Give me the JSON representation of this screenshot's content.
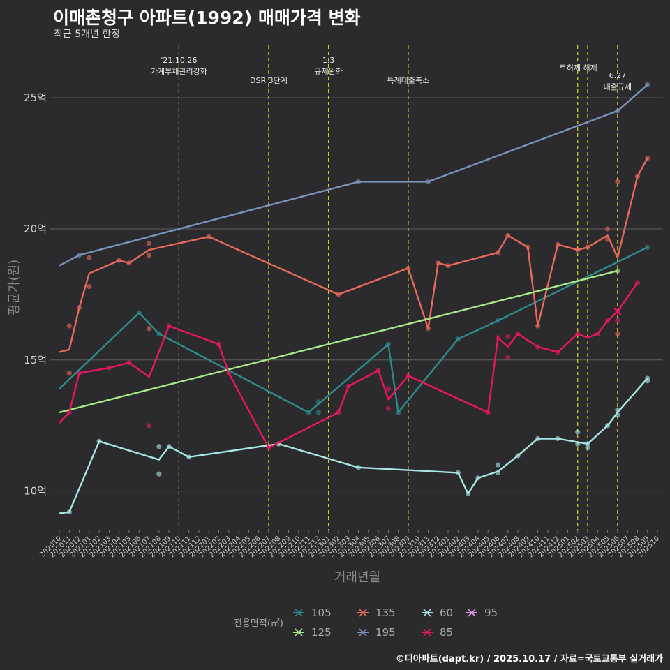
{
  "header": {
    "title": "이매촌청구 아파트(1992) 매매가격 변화",
    "subtitle": "최근 5개년 한정"
  },
  "footer": {
    "caption": "©디아파트(dapt.kr) / 2025.10.17 / 자료=국토교통부 실거래가"
  },
  "chart_data": {
    "type": "line",
    "title": "이매촌청구 아파트(1992) 매매가격 변화",
    "xlabel": "거래년월",
    "ylabel": "평균가(원)",
    "x_range": [
      "2020-10",
      "2025-10"
    ],
    "ylim": [
      8.5,
      27.0
    ],
    "yticks": [
      {
        "value": 10,
        "label": "10억"
      },
      {
        "value": 15,
        "label": "15억"
      },
      {
        "value": 20,
        "label": "20억"
      },
      {
        "value": 25,
        "label": "25억"
      }
    ],
    "x_tick_labels": [
      "202010",
      "202011",
      "202012",
      "202101",
      "202102",
      "202103",
      "202104",
      "202105",
      "202106",
      "202107",
      "202108",
      "202109",
      "202110",
      "202111",
      "202112",
      "202201",
      "202202",
      "202203",
      "202204",
      "202205",
      "202206",
      "202207",
      "202208",
      "202209",
      "202210",
      "202211",
      "202212",
      "202301",
      "202302",
      "202303",
      "202304",
      "202305",
      "202306",
      "202307",
      "202308",
      "202309",
      "202310",
      "202311",
      "202312",
      "202401",
      "202402",
      "202403",
      "202404",
      "202405",
      "202406",
      "202407",
      "202408",
      "202409",
      "202410",
      "202411",
      "202412",
      "202501",
      "202502",
      "202503",
      "202504",
      "202505",
      "202506",
      "202507",
      "202508",
      "202509",
      "202510"
    ],
    "events": [
      {
        "x": "2021-10",
        "lines": [
          "'21.10.26",
          "가계부채관리강화"
        ],
        "row": 0
      },
      {
        "x": "2022-07",
        "lines": [
          "DSR 3단계"
        ],
        "row": 1
      },
      {
        "x": "2023-01",
        "lines": [
          "1.3",
          "규제완화"
        ],
        "row": 0
      },
      {
        "x": "2023-09",
        "lines": [
          "특례대출축소"
        ],
        "row": 1
      },
      {
        "x": "2025-02",
        "lines": [
          "토허제 해제"
        ],
        "row": 0
      },
      {
        "x": "2025-03",
        "lines": [],
        "row": 0
      },
      {
        "x": "2025-06",
        "lines": [
          "6.27",
          "대출규제"
        ],
        "row": 2
      }
    ],
    "legend": {
      "title": "전용면적(㎡)",
      "items": [
        "105",
        "135",
        "60",
        "95",
        "125",
        "195",
        "85"
      ]
    },
    "series": [
      {
        "name": "105",
        "color": "#2e8b8b",
        "line": [
          [
            "2020-10",
            13.9
          ],
          [
            "2021-06",
            16.8
          ],
          [
            "2021-08",
            16.0
          ],
          [
            "2022-11",
            13.0
          ],
          [
            "2023-07",
            15.6
          ],
          [
            "2023-08",
            13.0
          ],
          [
            "2024-02",
            15.8
          ],
          [
            "2024-06",
            16.5
          ],
          [
            "2025-09",
            19.3
          ]
        ],
        "points": [
          [
            "2021-06",
            16.8
          ],
          [
            "2021-08",
            16.0
          ],
          [
            "2022-11",
            13.0
          ],
          [
            "2022-12",
            13.4
          ],
          [
            "2022-12",
            13.0
          ],
          [
            "2023-07",
            15.6
          ],
          [
            "2023-08",
            13.0
          ],
          [
            "2024-02",
            15.8
          ],
          [
            "2024-06",
            16.5
          ],
          [
            "2025-09",
            19.3
          ]
        ]
      },
      {
        "name": "135",
        "color": "#e8695b",
        "line": [
          [
            "2020-10",
            15.3
          ],
          [
            "2020-11",
            15.4
          ],
          [
            "2020-12",
            17.0
          ],
          [
            "2021-01",
            18.3
          ],
          [
            "2021-04",
            18.8
          ],
          [
            "2021-05",
            18.7
          ],
          [
            "2021-07",
            19.2
          ],
          [
            "2022-01",
            19.7
          ],
          [
            "2023-02",
            17.5
          ],
          [
            "2023-09",
            18.5
          ],
          [
            "2023-11",
            16.2
          ],
          [
            "2023-12",
            18.7
          ],
          [
            "2024-01",
            18.6
          ],
          [
            "2024-06",
            19.1
          ],
          [
            "2024-07",
            19.75
          ],
          [
            "2024-09",
            19.3
          ],
          [
            "2024-10",
            16.3
          ],
          [
            "2024-12",
            19.4
          ],
          [
            "2025-02",
            19.2
          ],
          [
            "2025-03",
            19.3
          ],
          [
            "2025-05",
            19.75
          ],
          [
            "2025-06",
            18.9
          ],
          [
            "2025-08",
            22.0
          ],
          [
            "2025-09",
            22.7
          ]
        ],
        "points": [
          [
            "2020-11",
            16.3
          ],
          [
            "2020-11",
            14.5
          ],
          [
            "2020-12",
            17.0
          ],
          [
            "2021-01",
            18.9
          ],
          [
            "2021-01",
            17.8
          ],
          [
            "2021-04",
            18.8
          ],
          [
            "2021-05",
            18.7
          ],
          [
            "2021-07",
            19.45
          ],
          [
            "2021-07",
            19.0
          ],
          [
            "2021-07",
            16.2
          ],
          [
            "2022-01",
            19.7
          ],
          [
            "2023-02",
            17.5
          ],
          [
            "2023-09",
            18.5
          ],
          [
            "2023-11",
            16.2
          ],
          [
            "2023-12",
            18.7
          ],
          [
            "2024-01",
            18.6
          ],
          [
            "2024-06",
            19.1
          ],
          [
            "2024-07",
            19.75
          ],
          [
            "2024-09",
            19.3
          ],
          [
            "2024-10",
            16.3
          ],
          [
            "2024-12",
            19.4
          ],
          [
            "2025-02",
            19.2
          ],
          [
            "2025-03",
            19.3
          ],
          [
            "2025-05",
            20.0
          ],
          [
            "2025-05",
            19.6
          ],
          [
            "2025-06",
            21.8
          ],
          [
            "2025-06",
            16.0
          ],
          [
            "2025-08",
            22.0
          ],
          [
            "2025-09",
            22.7
          ]
        ]
      },
      {
        "name": "60",
        "color": "#a8e6e6",
        "line": [
          [
            "2020-10",
            9.15
          ],
          [
            "2020-11",
            9.2
          ],
          [
            "2021-02",
            11.9
          ],
          [
            "2021-08",
            11.2
          ],
          [
            "2021-09",
            11.7
          ],
          [
            "2021-11",
            11.3
          ],
          [
            "2022-08",
            11.8
          ],
          [
            "2023-04",
            10.9
          ],
          [
            "2024-02",
            10.7
          ],
          [
            "2024-03",
            9.9
          ],
          [
            "2024-04",
            10.5
          ],
          [
            "2024-06",
            10.75
          ],
          [
            "2024-08",
            11.35
          ],
          [
            "2024-10",
            12.0
          ],
          [
            "2024-12",
            12.0
          ],
          [
            "2025-03",
            11.8
          ],
          [
            "2025-05",
            12.5
          ],
          [
            "2025-06",
            13.0
          ],
          [
            "2025-09",
            14.3
          ]
        ],
        "points": [
          [
            "2020-11",
            9.2
          ],
          [
            "2021-02",
            11.9
          ],
          [
            "2021-08",
            11.7
          ],
          [
            "2021-08",
            10.65
          ],
          [
            "2021-09",
            11.7
          ],
          [
            "2021-11",
            11.3
          ],
          [
            "2022-08",
            11.8
          ],
          [
            "2023-04",
            10.9
          ],
          [
            "2024-02",
            10.7
          ],
          [
            "2024-03",
            9.9
          ],
          [
            "2024-04",
            10.5
          ],
          [
            "2024-06",
            11.0
          ],
          [
            "2024-06",
            10.7
          ],
          [
            "2024-08",
            11.35
          ],
          [
            "2024-10",
            12.0
          ],
          [
            "2024-12",
            12.0
          ],
          [
            "2025-02",
            12.25
          ],
          [
            "2025-02",
            11.8
          ],
          [
            "2025-03",
            11.8
          ],
          [
            "2025-03",
            11.65
          ],
          [
            "2025-05",
            12.5
          ],
          [
            "2025-06",
            13.1
          ],
          [
            "2025-06",
            12.9
          ],
          [
            "2025-09",
            14.3
          ],
          [
            "2025-09",
            14.2
          ]
        ]
      },
      {
        "name": "95",
        "color": "#d99be0",
        "line": [],
        "points": []
      },
      {
        "name": "125",
        "color": "#a8e68a",
        "line": [
          [
            "2020-10",
            13.0
          ],
          [
            "2025-06",
            18.4
          ]
        ],
        "points": [
          [
            "2025-06",
            18.4
          ]
        ]
      },
      {
        "name": "195",
        "color": "#7b93b8",
        "line": [
          [
            "2020-10",
            18.6
          ],
          [
            "2020-12",
            19.0
          ],
          [
            "2023-04",
            21.8
          ],
          [
            "2023-11",
            21.8
          ],
          [
            "2025-06",
            24.5
          ],
          [
            "2025-09",
            25.5
          ]
        ],
        "points": [
          [
            "2020-12",
            19.0
          ],
          [
            "2023-04",
            21.8
          ],
          [
            "2023-11",
            21.8
          ],
          [
            "2025-06",
            24.5
          ],
          [
            "2025-09",
            25.5
          ]
        ]
      },
      {
        "name": "85",
        "color": "#e8175d",
        "line": [
          [
            "2020-10",
            12.6
          ],
          [
            "2020-11",
            13.0
          ],
          [
            "2020-12",
            14.5
          ],
          [
            "2021-03",
            14.7
          ],
          [
            "2021-05",
            14.9
          ],
          [
            "2021-07",
            14.35
          ],
          [
            "2021-09",
            16.3
          ],
          [
            "2022-02",
            15.6
          ],
          [
            "2022-03",
            14.5
          ],
          [
            "2022-07",
            11.65
          ],
          [
            "2023-02",
            13.0
          ],
          [
            "2023-03",
            14.0
          ],
          [
            "2023-06",
            14.6
          ],
          [
            "2023-07",
            13.5
          ],
          [
            "2023-09",
            14.4
          ],
          [
            "2024-05",
            13.0
          ],
          [
            "2024-06",
            15.85
          ],
          [
            "2024-07",
            15.5
          ],
          [
            "2024-08",
            16.0
          ],
          [
            "2024-10",
            15.5
          ],
          [
            "2024-12",
            15.3
          ],
          [
            "2025-02",
            16.0
          ],
          [
            "2025-03",
            15.85
          ],
          [
            "2025-04",
            16.0
          ],
          [
            "2025-05",
            16.5
          ],
          [
            "2025-06",
            16.85
          ],
          [
            "2025-08",
            17.95
          ]
        ],
        "points": [
          [
            "2020-11",
            13.0
          ],
          [
            "2020-12",
            14.5
          ],
          [
            "2021-03",
            14.7
          ],
          [
            "2021-05",
            14.9
          ],
          [
            "2021-07",
            12.5
          ],
          [
            "2021-09",
            16.3
          ],
          [
            "2022-02",
            15.6
          ],
          [
            "2022-03",
            14.5
          ],
          [
            "2022-07",
            11.65
          ],
          [
            "2023-02",
            13.0
          ],
          [
            "2023-03",
            14.0
          ],
          [
            "2023-06",
            14.6
          ],
          [
            "2023-07",
            13.9
          ],
          [
            "2023-07",
            13.15
          ],
          [
            "2023-09",
            14.4
          ],
          [
            "2024-05",
            13.0
          ],
          [
            "2024-06",
            15.85
          ],
          [
            "2024-07",
            15.9
          ],
          [
            "2024-07",
            15.1
          ],
          [
            "2024-08",
            16.0
          ],
          [
            "2024-10",
            15.5
          ],
          [
            "2024-12",
            15.3
          ],
          [
            "2025-02",
            16.0
          ],
          [
            "2025-04",
            16.0
          ],
          [
            "2025-05",
            16.5
          ],
          [
            "2025-06",
            16.85
          ],
          [
            "2025-06",
            16.5
          ],
          [
            "2025-08",
            17.95
          ]
        ]
      }
    ]
  }
}
